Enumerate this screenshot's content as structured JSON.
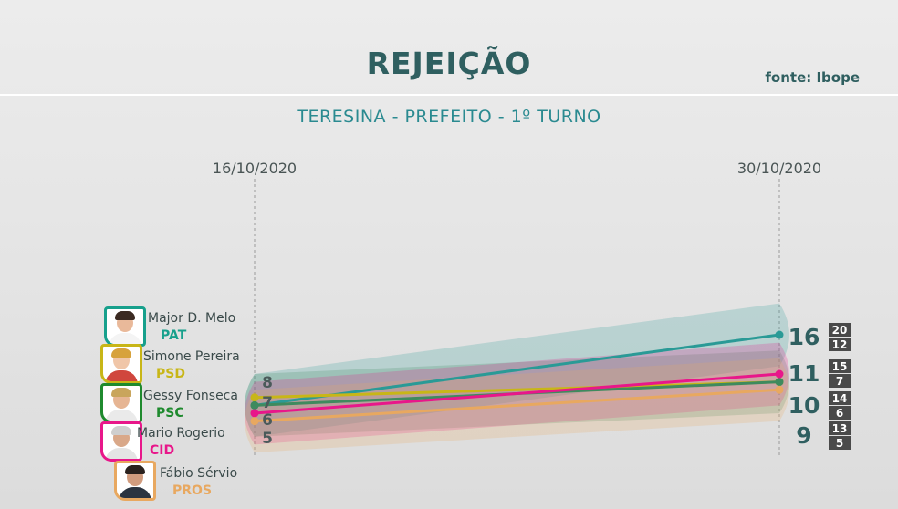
{
  "header": {
    "title": "REJEIÇÃO",
    "source": "fonte: Ibope",
    "subtitle": "TERESINA - PREFEITO - 1º TURNO"
  },
  "candidates": [
    {
      "name": "Major D. Melo",
      "party": "PAT",
      "color": "#17a08c"
    },
    {
      "name": "Simone Pereira",
      "party": "PSD",
      "color": "#c8b617"
    },
    {
      "name": "Gessy Fonseca",
      "party": "PSC",
      "color": "#1f8a2e"
    },
    {
      "name": "Mario Rogerio",
      "party": "CID",
      "color": "#e8178a"
    },
    {
      "name": "Fábio Sérvio",
      "party": "PROS",
      "color": "#e8a860"
    }
  ],
  "chart_data": {
    "type": "line",
    "title": "REJEIÇÃO",
    "subtitle": "TERESINA - PREFEITO - 1º TURNO",
    "x": [
      "16/10/2020",
      "30/10/2020"
    ],
    "ylabel": "",
    "series": [
      {
        "name": "Major D. Melo (PAT)",
        "values": [
          7,
          16
        ],
        "margin_end": [
          12,
          20
        ],
        "color": "#2a9a96"
      },
      {
        "name": "Simone Pereira (PSD)",
        "values": [
          8,
          10
        ],
        "color": "#c8b617"
      },
      {
        "name": "Gessy Fonseca (PSC)",
        "values": [
          7,
          10
        ],
        "margin_end": [
          6,
          14
        ],
        "color": "#3f8a5e"
      },
      {
        "name": "Mario Rogerio (CID)",
        "values": [
          6,
          11
        ],
        "margin_end": [
          7,
          15
        ],
        "color": "#e8178a"
      },
      {
        "name": "Fábio Sérvio (PROS)",
        "values": [
          5,
          9
        ],
        "margin_end": [
          5,
          13
        ],
        "color": "#e8a860"
      }
    ],
    "start_labels": [
      "8",
      "7",
      "6",
      "5"
    ],
    "end_labels": [
      {
        "value": "16",
        "max": "20",
        "min": "12"
      },
      {
        "value": "11",
        "max": "15",
        "min": "7"
      },
      {
        "value": "10",
        "max": "14",
        "min": "6"
      },
      {
        "value": "9",
        "max": "13",
        "min": "5"
      }
    ]
  }
}
